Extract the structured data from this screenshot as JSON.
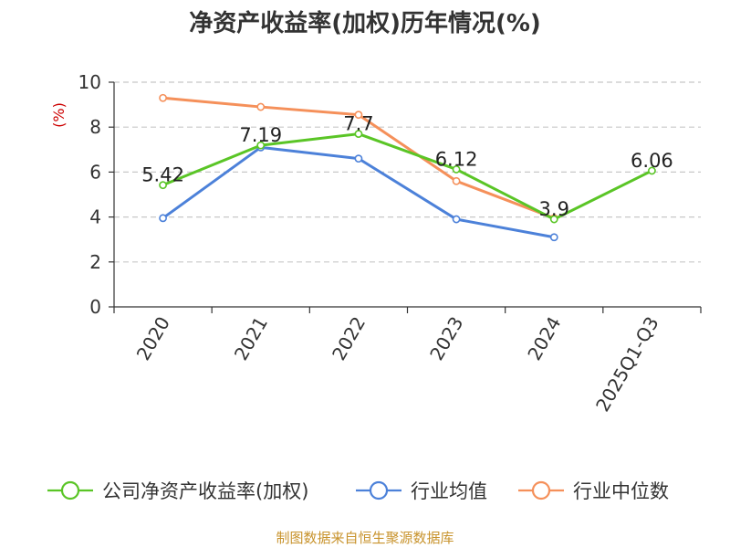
{
  "chart_data": {
    "type": "line",
    "title": "净资产收益率(加权)历年情况(%)",
    "ylabel": "(%)",
    "ylim": [
      0,
      10
    ],
    "yticks": [
      0,
      2,
      4,
      6,
      8,
      10
    ],
    "grid": true,
    "categories": [
      "2020",
      "2021",
      "2022",
      "2023",
      "2024",
      "2025Q1-Q3"
    ],
    "series": [
      {
        "name": "公司净资产收益率(加权)",
        "color": "#5ac526",
        "values": [
          5.42,
          7.19,
          7.7,
          6.12,
          3.9,
          6.06
        ],
        "labels": [
          "5.42",
          "7.19",
          "7.7",
          "6.12",
          "3.9",
          "6.06"
        ]
      },
      {
        "name": "行业均值",
        "color": "#4c81d9",
        "values": [
          3.95,
          7.1,
          6.6,
          3.9,
          3.1,
          null
        ]
      },
      {
        "name": "行业中位数",
        "color": "#f5905a",
        "values": [
          9.3,
          8.9,
          8.55,
          5.6,
          3.95,
          null
        ]
      }
    ],
    "legend_position": "bottom"
  },
  "source": "制图数据来自恒生聚源数据库"
}
